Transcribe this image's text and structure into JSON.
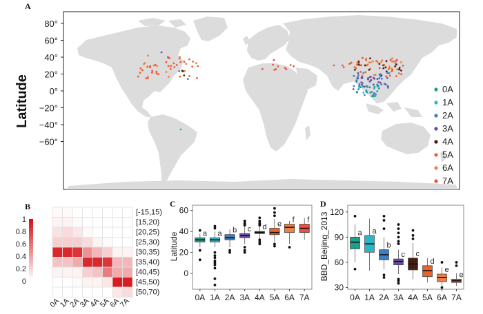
{
  "figure": {
    "panel_a": {
      "label": "A",
      "ylabel": "Latitude",
      "yticks": [
        "80°",
        "60°",
        "40°",
        "20°",
        "0°",
        "−20°",
        "−40°",
        "−60°"
      ],
      "legend": [
        {
          "name": "0A",
          "color": "#1f9e89"
        },
        {
          "name": "1A",
          "color": "#26b8c8"
        },
        {
          "name": "2A",
          "color": "#3b7fc4"
        },
        {
          "name": "3A",
          "color": "#6a4ba0"
        },
        {
          "name": "4A",
          "color": "#4a1c10"
        },
        {
          "name": "5A",
          "color": "#e8622a"
        },
        {
          "name": "6A",
          "color": "#f08040"
        },
        {
          "name": "7A",
          "color": "#f05040"
        }
      ]
    },
    "panel_b": {
      "label": "B",
      "colorbar_ticks": [
        "1",
        "0.8",
        "0.6",
        "0.4",
        "0.2",
        "0"
      ],
      "row_labels": [
        "[-15,15)",
        "[15,20)",
        "[20,25)",
        "[25,30)",
        "[30,35)",
        "[35,40)",
        "[40,45)",
        "[45,50)",
        "[50,70)"
      ],
      "col_labels": [
        "0A",
        "1A",
        "2A",
        "3A",
        "4A",
        "5A",
        "6A",
        "7A"
      ]
    },
    "panel_c": {
      "label": "C",
      "ylabel": "Latitude"
    },
    "panel_d": {
      "label": "D",
      "ylabel": "BBD_Beijing_2013"
    }
  },
  "chart_data": [
    {
      "type": "heatmap",
      "panel": "B",
      "rows": [
        "[-15,15)",
        "[15,20)",
        "[20,25)",
        "[25,30)",
        "[30,35)",
        "[35,40)",
        "[40,45)",
        "[45,50)",
        "[50,70)"
      ],
      "columns": [
        "0A",
        "1A",
        "2A",
        "3A",
        "4A",
        "5A",
        "6A",
        "7A"
      ],
      "values": [
        [
          0.02,
          0.02,
          0.0,
          0.0,
          0.0,
          0.0,
          0.0,
          0.0
        ],
        [
          0.05,
          0.05,
          0.02,
          0.0,
          0.0,
          0.0,
          0.0,
          0.0
        ],
        [
          0.12,
          0.15,
          0.1,
          0.02,
          0.0,
          0.0,
          0.0,
          0.0
        ],
        [
          0.2,
          0.2,
          0.2,
          0.15,
          0.05,
          0.02,
          0.0,
          0.0
        ],
        [
          0.9,
          0.9,
          0.85,
          0.45,
          0.3,
          0.2,
          0.05,
          0.05
        ],
        [
          0.25,
          0.25,
          0.35,
          0.9,
          0.9,
          0.85,
          0.3,
          0.3
        ],
        [
          0.05,
          0.05,
          0.05,
          0.2,
          0.25,
          0.55,
          0.35,
          0.35
        ],
        [
          0.0,
          0.0,
          0.02,
          0.05,
          0.05,
          0.1,
          0.95,
          0.95
        ],
        [
          0.0,
          0.0,
          0.0,
          0.0,
          0.0,
          0.0,
          0.1,
          0.15
        ]
      ],
      "colorbar_range": [
        0,
        1
      ]
    },
    {
      "type": "box",
      "panel": "C",
      "ylabel": "Latitude",
      "ylim": [
        -15,
        65
      ],
      "categories": [
        "0A",
        "1A",
        "2A",
        "3A",
        "4A",
        "5A",
        "6A",
        "7A"
      ],
      "colors": [
        "#1f9e89",
        "#26b8c8",
        "#3b7fc4",
        "#6a4ba0",
        "#4a1c10",
        "#e8622a",
        "#f08040",
        "#f05040"
      ],
      "boxes": [
        {
          "low": 25,
          "q1": 30,
          "median": 32,
          "q3": 34,
          "high": 38,
          "outliers": [
            41,
            22,
            13
          ],
          "letter": "a"
        },
        {
          "low": 25,
          "q1": 30,
          "median": 32,
          "q3": 34,
          "high": 40,
          "outliers": [
            43,
            45,
            20,
            17,
            15,
            12,
            10,
            8,
            5,
            -5,
            -11
          ],
          "letter": "a"
        },
        {
          "low": 25,
          "q1": 32,
          "median": 34,
          "q3": 37,
          "high": 42,
          "outliers": [
            22,
            20
          ],
          "letter": "b"
        },
        {
          "low": 28,
          "q1": 34,
          "median": 36,
          "q3": 38,
          "high": 45,
          "outliers": [
            50,
            48,
            47,
            46,
            25,
            22,
            20
          ],
          "letter": "c"
        },
        {
          "low": 33,
          "q1": 38,
          "median": 39,
          "q3": 40,
          "high": 45,
          "outliers": [
            53,
            50,
            48,
            47,
            46,
            32,
            30,
            28
          ],
          "letter": "d"
        },
        {
          "low": 30,
          "q1": 37,
          "median": 39,
          "q3": 43,
          "high": 52,
          "outliers": [
            62,
            58,
            55,
            28,
            26
          ],
          "letter": "e"
        },
        {
          "low": 28,
          "q1": 39,
          "median": 44,
          "q3": 47,
          "high": 50,
          "outliers": [
            25
          ],
          "letter": "f"
        },
        {
          "low": 32,
          "q1": 39,
          "median": 43,
          "q3": 47,
          "high": 53,
          "outliers": [],
          "letter": "f"
        }
      ]
    },
    {
      "type": "box",
      "panel": "D",
      "ylabel": "BBD_Beijing_2013",
      "ylim": [
        28,
        128
      ],
      "categories": [
        "0A",
        "1A",
        "2A",
        "3A",
        "4A",
        "5A",
        "6A",
        "7A"
      ],
      "colors": [
        "#1f9e89",
        "#26b8c8",
        "#3b7fc4",
        "#6a4ba0",
        "#4a1c10",
        "#e8622a",
        "#f08040",
        "#f05040"
      ],
      "boxes": [
        {
          "low": 60,
          "q1": 76,
          "median": 84,
          "q3": 90,
          "high": 105,
          "outliers": [
            115,
            52
          ],
          "letter": "a"
        },
        {
          "low": 50,
          "q1": 72,
          "median": 82,
          "q3": 92,
          "high": 112,
          "outliers": [],
          "letter": "a"
        },
        {
          "low": 52,
          "q1": 63,
          "median": 69,
          "q3": 75,
          "high": 90,
          "outliers": [
            115,
            110,
            100,
            45,
            42
          ],
          "letter": "b"
        },
        {
          "low": 46,
          "q1": 57,
          "median": 61,
          "q3": 64,
          "high": 75,
          "outliers": [
            105,
            100,
            95,
            90,
            85,
            82,
            40,
            38,
            35
          ],
          "letter": "c"
        },
        {
          "low": 40,
          "q1": 51,
          "median": 58,
          "q3": 65,
          "high": 83,
          "outliers": [
            98,
            92,
            88
          ],
          "letter": "c"
        },
        {
          "low": 36,
          "q1": 43,
          "median": 50,
          "q3": 56,
          "high": 65,
          "outliers": [],
          "letter": "d"
        },
        {
          "low": 32,
          "q1": 37,
          "median": 42,
          "q3": 46,
          "high": 54,
          "outliers": [
            60,
            30
          ],
          "letter": "e"
        },
        {
          "low": 32,
          "q1": 36,
          "median": 38,
          "q3": 40,
          "high": 47,
          "outliers": [
            60,
            56
          ],
          "letter": "e"
        }
      ]
    }
  ]
}
